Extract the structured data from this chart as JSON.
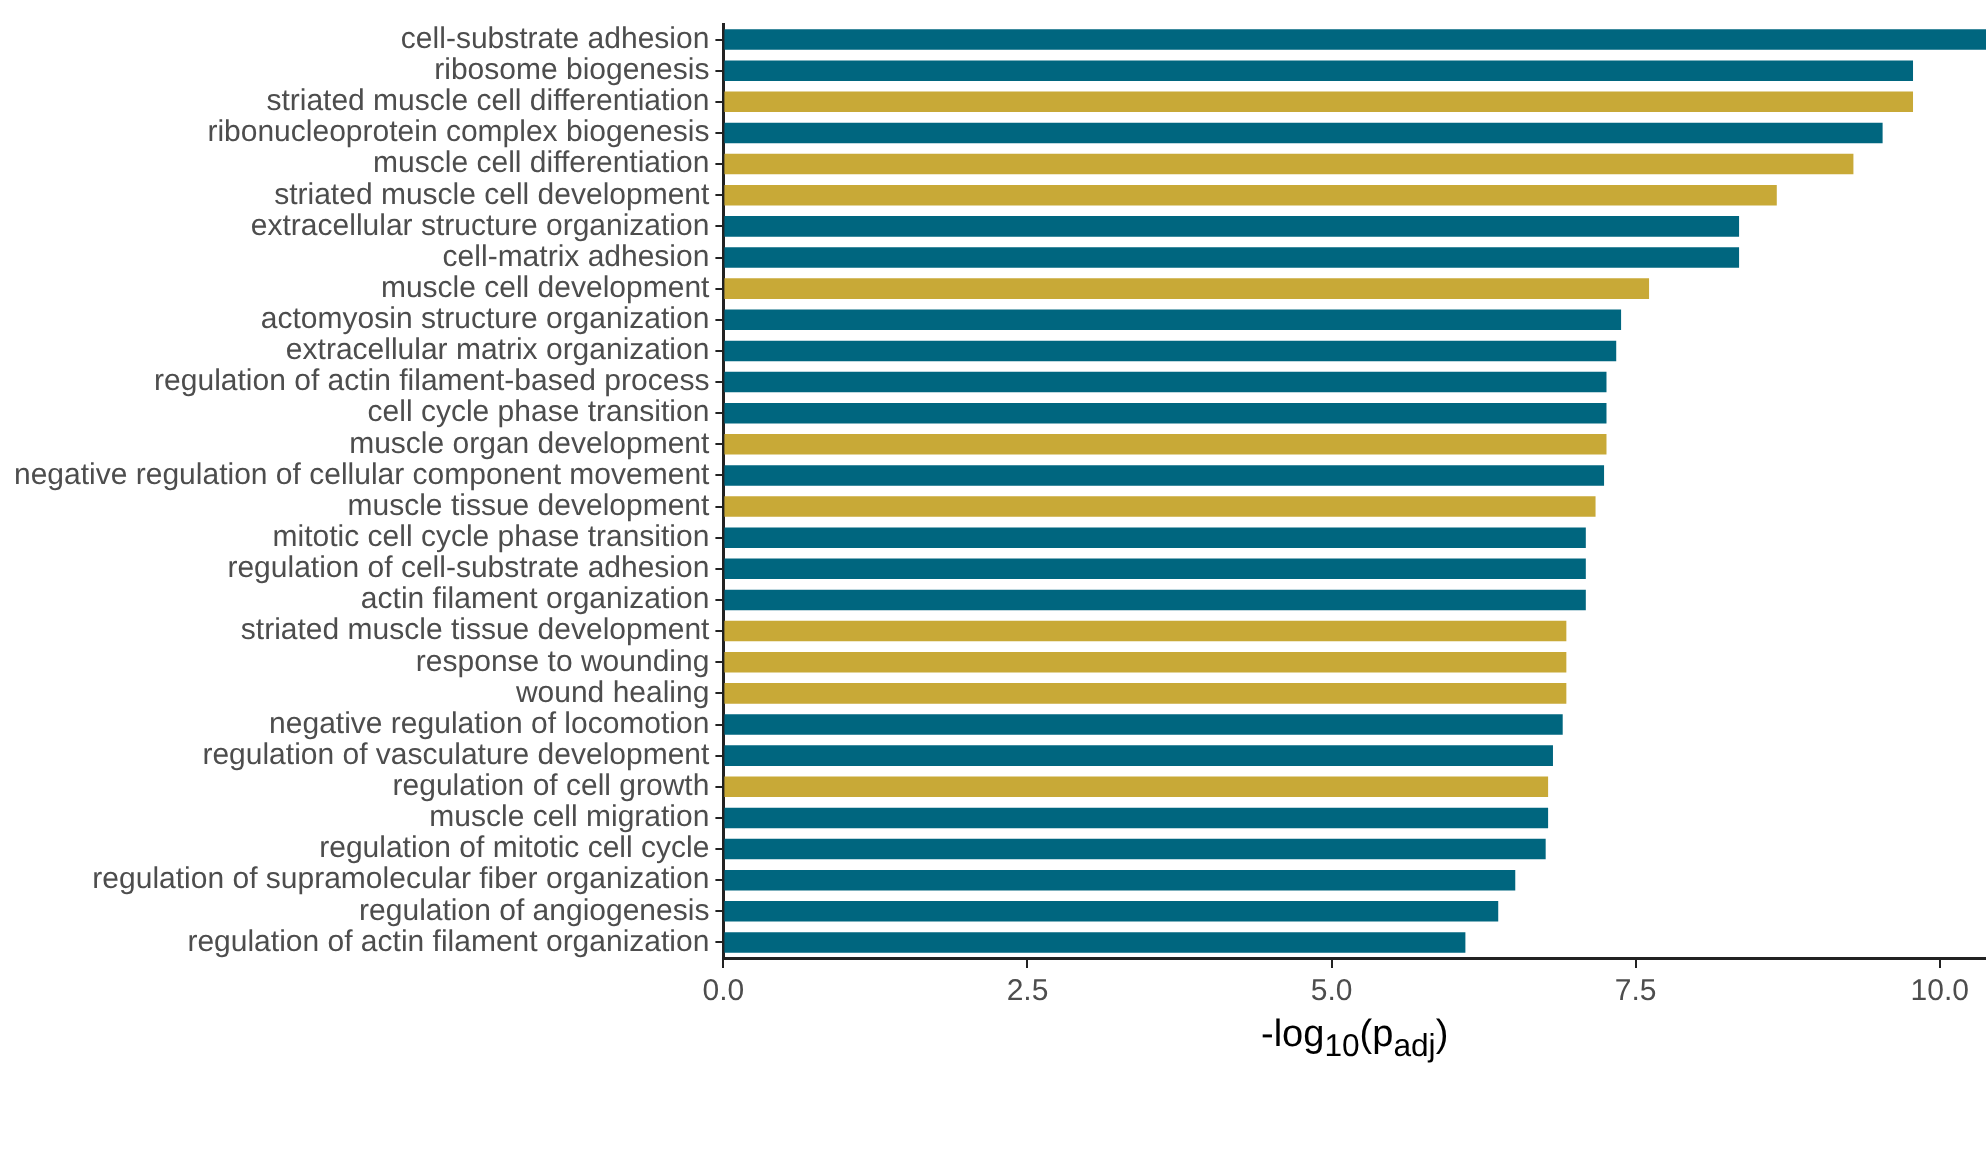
{
  "chart_data": {
    "type": "bar",
    "orientation": "horizontal",
    "xlabel": "-log$_{10}$(p$_{adj}$)",
    "categories": [
      "cell-substrate adhesion",
      "ribosome biogenesis",
      "striated muscle cell differentiation",
      "ribonucleoprotein complex biogenesis",
      "muscle cell differentiation",
      "striated muscle cell development",
      "extracellular structure organization",
      "cell-matrix adhesion",
      "muscle cell development",
      "actomyosin structure organization",
      "extracellular matrix organization",
      "regulation of actin filament-based process",
      "cell cycle phase transition",
      "muscle organ development",
      "negative regulation of cellular component movement",
      "muscle tissue development",
      "mitotic cell cycle phase transition",
      "regulation of cell-substrate adhesion",
      "actin filament organization",
      "striated muscle tissue development",
      "response to wounding",
      "wound healing",
      "negative regulation of locomotion",
      "regulation of vasculature development",
      "regulation of cell growth",
      "muscle cell migration",
      "regulation of mitotic cell cycle",
      "regulation of supramolecular fiber organization",
      "regulation of angiogenesis",
      "regulation of actin filament organization"
    ],
    "values": [
      10.38,
      9.78,
      9.78,
      9.53,
      9.29,
      8.66,
      8.35,
      8.35,
      7.61,
      7.38,
      7.34,
      7.26,
      7.26,
      7.26,
      7.24,
      7.17,
      7.09,
      7.09,
      7.09,
      6.93,
      6.93,
      6.93,
      6.9,
      6.82,
      6.78,
      6.78,
      6.76,
      6.51,
      6.37,
      6.1
    ],
    "colors": [
      "#00667f",
      "#00667f",
      "#c8a937",
      "#00667f",
      "#c8a937",
      "#c8a937",
      "#00667f",
      "#00667f",
      "#c8a937",
      "#00667f",
      "#00667f",
      "#00667f",
      "#00667f",
      "#c8a937",
      "#00667f",
      "#c8a937",
      "#00667f",
      "#00667f",
      "#00667f",
      "#c8a937",
      "#c8a937",
      "#c8a937",
      "#00667f",
      "#00667f",
      "#c8a937",
      "#00667f",
      "#00667f",
      "#00667f",
      "#00667f",
      "#00667f"
    ],
    "xlim": [
      0,
      10.38
    ],
    "xticks": [
      {
        "value": 0,
        "label": "0.0"
      },
      {
        "value": 2.5,
        "label": "2.5"
      },
      {
        "value": 5,
        "label": "5.0"
      },
      {
        "value": 7.5,
        "label": "7.5"
      },
      {
        "value": 10,
        "label": "10.0"
      }
    ],
    "grid": false,
    "legend": false
  }
}
